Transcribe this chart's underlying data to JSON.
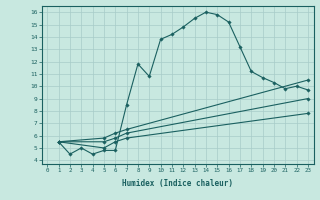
{
  "xlabel": "Humidex (Indice chaleur)",
  "ylabel": "",
  "bg_color": "#c8e8e0",
  "grid_color": "#a8ccc8",
  "line_color": "#1a6060",
  "xlim": [
    -0.5,
    23.5
  ],
  "ylim": [
    3.7,
    16.5
  ],
  "xticks": [
    0,
    1,
    2,
    3,
    4,
    5,
    6,
    7,
    8,
    9,
    10,
    11,
    12,
    13,
    14,
    15,
    16,
    17,
    18,
    19,
    20,
    21,
    22,
    23
  ],
  "yticks": [
    4,
    5,
    6,
    7,
    8,
    9,
    10,
    11,
    12,
    13,
    14,
    15,
    16
  ],
  "line1_x": [
    1,
    2,
    3,
    4,
    5,
    6,
    7,
    8,
    9,
    10,
    11,
    12,
    13,
    14,
    15,
    16,
    17,
    18,
    19,
    20,
    21,
    22,
    23
  ],
  "line1_y": [
    5.5,
    4.5,
    5.0,
    4.5,
    4.8,
    4.8,
    8.5,
    11.8,
    10.8,
    13.8,
    14.2,
    14.8,
    15.5,
    16.0,
    15.8,
    15.2,
    13.2,
    11.2,
    10.7,
    10.3,
    9.8,
    10.0,
    9.7
  ],
  "line2_x": [
    1,
    5,
    6,
    7,
    23
  ],
  "line2_y": [
    5.5,
    5.8,
    6.2,
    6.5,
    10.5
  ],
  "line3_x": [
    1,
    5,
    6,
    7,
    23
  ],
  "line3_y": [
    5.5,
    5.5,
    5.8,
    6.2,
    9.0
  ],
  "line4_x": [
    1,
    5,
    6,
    7,
    23
  ],
  "line4_y": [
    5.5,
    5.0,
    5.5,
    5.8,
    7.8
  ]
}
